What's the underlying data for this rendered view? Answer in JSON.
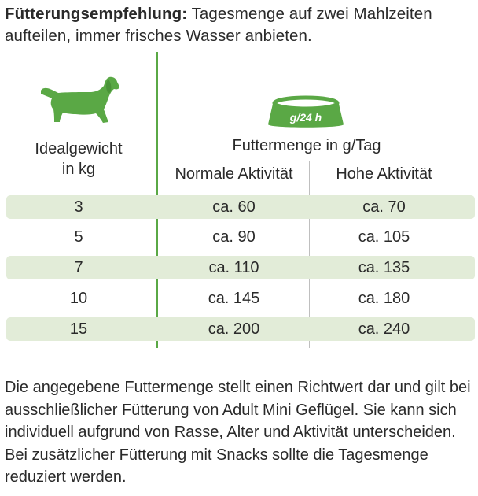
{
  "intro": {
    "bold": "Fütterungsempfehlung:",
    "text": "Tagesmenge auf zwei Mahlzeiten aufteilen, immer frisches Wasser anbieten."
  },
  "bowl_label": "g/24 h",
  "headers": {
    "weight_line1": "Idealgewicht",
    "weight_line2": "in kg",
    "amount": "Futtermenge in g/Tag",
    "normal": "Normale Aktivität",
    "high": "Hohe Aktivität"
  },
  "rows": [
    {
      "weight": "3",
      "normal": "ca. 60",
      "high": "ca. 70"
    },
    {
      "weight": "5",
      "normal": "ca. 90",
      "high": "ca. 105"
    },
    {
      "weight": "7",
      "normal": "ca. 110",
      "high": "ca. 135"
    },
    {
      "weight": "10",
      "normal": "ca. 145",
      "high": "ca. 180"
    },
    {
      "weight": "15",
      "normal": "ca. 200",
      "high": "ca. 240"
    }
  ],
  "outro": "Die angegebene Futtermenge stellt einen Richtwert dar und gilt bei ausschließlicher Fütterung von Adult Mini Geflügel. Sie kann sich individuell aufgrund von Rasse, Alter und Aktivität unterscheiden. Bei zusätzlicher Fütterung mit Snacks sollte die Tagesmenge reduziert werden.",
  "colors": {
    "accent_green": "#5aa845",
    "row_shade": "#e2ecd8",
    "text": "#2a2a2a"
  },
  "icons": [
    "dog-icon",
    "food-bowl-icon"
  ]
}
